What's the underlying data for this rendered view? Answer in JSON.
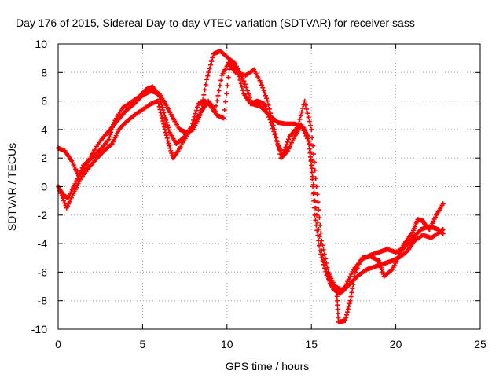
{
  "chart_data": {
    "type": "scatter",
    "title": "Day 176 of 2015, Sidereal Day-to-day VTEC variation (SDTVAR) for receiver sass",
    "xlabel": "GPS time / hours",
    "ylabel": "SDTVAR / TECUs",
    "xlim": [
      0,
      25
    ],
    "ylim": [
      -10,
      10
    ],
    "xticks": [
      0,
      5,
      10,
      15,
      20,
      25
    ],
    "yticks": [
      -10,
      -8,
      -6,
      -4,
      -2,
      0,
      2,
      4,
      6,
      8,
      10
    ],
    "grid": true,
    "marker": "+",
    "color": "#ff0000",
    "series": [
      {
        "points": [
          [
            0,
            2.7
          ],
          [
            0.4,
            2.5
          ],
          [
            0.8,
            1.8
          ],
          [
            1.2,
            0.8
          ],
          [
            1.6,
            1.2
          ],
          [
            2.0,
            2.3
          ],
          [
            2.5,
            3.2
          ],
          [
            3.0,
            3.9
          ],
          [
            3.5,
            4.6
          ],
          [
            4.0,
            5.3
          ],
          [
            4.5,
            5.8
          ],
          [
            5.0,
            6.4
          ],
          [
            5.5,
            6.7
          ],
          [
            6.0,
            6.5
          ],
          [
            6.4,
            5.7
          ],
          [
            6.8,
            4.8
          ],
          [
            7.2,
            4.0
          ],
          [
            7.6,
            3.8
          ],
          [
            8.0,
            4.0
          ],
          [
            8.4,
            5.0
          ],
          [
            8.8,
            7.5
          ],
          [
            9.2,
            9.3
          ],
          [
            9.6,
            9.5
          ],
          [
            10.0,
            9.1
          ],
          [
            10.5,
            8.6
          ],
          [
            11.0,
            7.4
          ],
          [
            11.5,
            5.8
          ],
          [
            12.0,
            5.6
          ],
          [
            12.5,
            5.0
          ],
          [
            13.0,
            4.5
          ],
          [
            13.5,
            4.4
          ],
          [
            14.0,
            4.4
          ],
          [
            14.5,
            4.2
          ],
          [
            14.8,
            3.5
          ],
          [
            15.0,
            1.5
          ],
          [
            15.2,
            -2.0
          ],
          [
            15.5,
            -4.5
          ],
          [
            15.9,
            -6.2
          ],
          [
            16.3,
            -7.2
          ],
          [
            16.7,
            -7.5
          ],
          [
            17.0,
            -7.0
          ],
          [
            17.5,
            -5.8
          ],
          [
            18.0,
            -5.1
          ],
          [
            18.5,
            -4.8
          ],
          [
            19.0,
            -4.6
          ],
          [
            19.5,
            -4.4
          ],
          [
            20.0,
            -4.6
          ],
          [
            20.5,
            -4.3
          ],
          [
            21.0,
            -3.6
          ],
          [
            21.5,
            -3.0
          ],
          [
            22.0,
            -2.8
          ],
          [
            22.5,
            -3.0
          ],
          [
            22.8,
            -3.3
          ]
        ]
      },
      {
        "points": [
          [
            0,
            0
          ],
          [
            0.3,
            -0.6
          ],
          [
            0.6,
            -0.8
          ],
          [
            1.0,
            0.2
          ],
          [
            1.5,
            1.5
          ],
          [
            2.0,
            2.0
          ],
          [
            2.5,
            2.6
          ],
          [
            3.0,
            3.3
          ],
          [
            3.3,
            4.5
          ],
          [
            3.8,
            5.5
          ],
          [
            4.3,
            5.9
          ],
          [
            4.8,
            6.3
          ],
          [
            5.2,
            6.8
          ],
          [
            5.6,
            7.0
          ],
          [
            6.0,
            6.3
          ],
          [
            6.3,
            5.0
          ],
          [
            6.6,
            3.8
          ],
          [
            7.0,
            3.0
          ],
          [
            7.4,
            3.4
          ],
          [
            7.9,
            4.2
          ],
          [
            8.3,
            5.8
          ],
          [
            8.7,
            6.0
          ],
          [
            9.0,
            5.7
          ],
          [
            9.4,
            5.0
          ],
          [
            9.8,
            4.8
          ],
          [
            10.2,
            8.8
          ],
          [
            10.6,
            8.2
          ],
          [
            11.0,
            6.5
          ],
          [
            11.4,
            5.8
          ],
          [
            11.8,
            6.0
          ],
          [
            12.2,
            5.8
          ],
          [
            12.6,
            4.5
          ],
          [
            13.0,
            3.0
          ],
          [
            13.3,
            2.2
          ],
          [
            13.7,
            3.5
          ],
          [
            14.2,
            4.2
          ],
          [
            14.6,
            6.0
          ],
          [
            15.0,
            4.0
          ],
          [
            15.3,
            0.0
          ],
          [
            15.6,
            -3.8
          ],
          [
            16.0,
            -6.0
          ],
          [
            16.4,
            -7.0
          ],
          [
            16.9,
            -7.3
          ],
          [
            17.3,
            -6.8
          ],
          [
            17.8,
            -6.2
          ],
          [
            18.3,
            -5.8
          ],
          [
            18.8,
            -5.6
          ],
          [
            19.3,
            -5.4
          ],
          [
            19.8,
            -5.2
          ],
          [
            20.3,
            -4.9
          ],
          [
            20.7,
            -4.5
          ],
          [
            21.1,
            -3.8
          ],
          [
            21.6,
            -3.4
          ],
          [
            22.1,
            -3.6
          ],
          [
            22.6,
            -3.2
          ],
          [
            22.8,
            -3.0
          ]
        ]
      },
      {
        "points": [
          [
            0.1,
            -0.3
          ],
          [
            0.5,
            -1.5
          ],
          [
            0.9,
            -0.5
          ],
          [
            1.3,
            0.5
          ],
          [
            1.8,
            1.3
          ],
          [
            2.3,
            2.0
          ],
          [
            2.8,
            2.6
          ],
          [
            3.2,
            3.0
          ],
          [
            3.6,
            4.0
          ],
          [
            4.0,
            4.5
          ],
          [
            4.5,
            5.0
          ],
          [
            5.0,
            5.4
          ],
          [
            5.5,
            5.8
          ],
          [
            5.9,
            6.0
          ],
          [
            6.2,
            4.6
          ],
          [
            6.5,
            3.2
          ],
          [
            6.8,
            2.0
          ],
          [
            7.1,
            2.5
          ],
          [
            7.6,
            3.5
          ],
          [
            8.1,
            4.5
          ],
          [
            8.5,
            5.3
          ],
          [
            8.9,
            6.0
          ],
          [
            9.3,
            5.3
          ],
          [
            9.7,
            7.8
          ],
          [
            10.1,
            8.7
          ],
          [
            10.5,
            8.0
          ],
          [
            11.1,
            7.8
          ],
          [
            11.6,
            8.2
          ],
          [
            12.0,
            7.3
          ],
          [
            12.4,
            6.0
          ],
          [
            12.8,
            4.0
          ],
          [
            13.2,
            2.0
          ],
          [
            13.6,
            2.5
          ],
          [
            14.0,
            3.5
          ],
          [
            14.4,
            4.3
          ],
          [
            14.9,
            3.0
          ],
          [
            15.2,
            -1.0
          ],
          [
            15.6,
            -4.5
          ],
          [
            16.1,
            -6.8
          ],
          [
            16.5,
            -7.4
          ],
          [
            16.6,
            -9.5
          ],
          [
            17.0,
            -9.4
          ],
          [
            17.3,
            -8.0
          ],
          [
            17.6,
            -6.0
          ],
          [
            18.0,
            -5.0
          ],
          [
            18.5,
            -4.9
          ],
          [
            19.0,
            -5.2
          ],
          [
            19.3,
            -6.3
          ],
          [
            19.8,
            -5.8
          ],
          [
            20.2,
            -4.8
          ],
          [
            20.5,
            -4.0
          ],
          [
            21.0,
            -3.2
          ],
          [
            21.3,
            -2.3
          ],
          [
            21.6,
            -2.4
          ],
          [
            21.8,
            -2.8
          ],
          [
            22.0,
            -3.0
          ],
          [
            22.4,
            -2.0
          ],
          [
            22.8,
            -1.2
          ]
        ]
      }
    ]
  }
}
